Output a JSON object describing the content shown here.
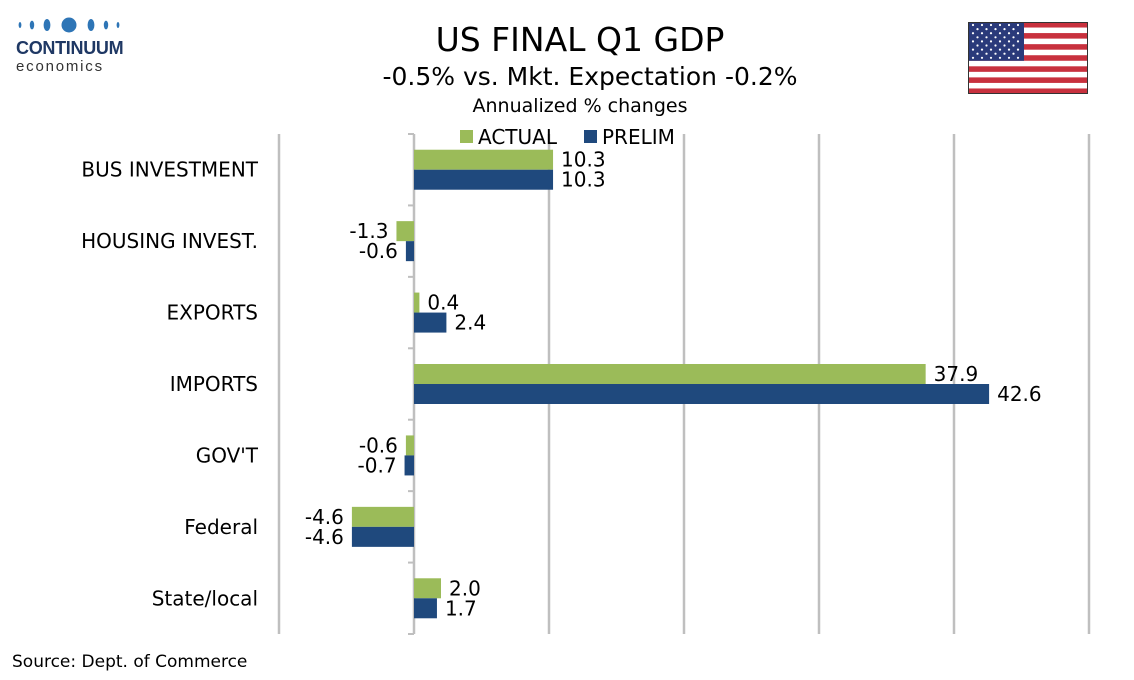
{
  "brand": {
    "name": "CONTINUUM",
    "sub": "economics"
  },
  "header": {
    "title": "US FINAL Q1 GDP",
    "subtitle": "-0.5% vs. Mkt. Expectation -0.2%",
    "note": "Annualized % changes"
  },
  "flag": {
    "icon": "us-flag-icon"
  },
  "source": "Source: Dept. of Commerce",
  "colors": {
    "actual": "#9bbb59",
    "prelim": "#1f497d",
    "grid": "#bfbfbf"
  },
  "chart_data": {
    "type": "bar",
    "orientation": "horizontal",
    "categories": [
      "BUS INVESTMENT",
      "HOUSING INVEST.",
      "EXPORTS",
      "IMPORTS",
      "GOV'T",
      "Federal",
      "State/local"
    ],
    "series": [
      {
        "name": "ACTUAL",
        "values": [
          10.3,
          -1.3,
          0.4,
          37.9,
          -0.6,
          -4.6,
          2.0
        ]
      },
      {
        "name": "PRELIM",
        "values": [
          10.3,
          -0.6,
          2.4,
          42.6,
          -0.7,
          -4.6,
          1.7
        ]
      }
    ],
    "xlim": [
      -10,
      50
    ],
    "grid": true,
    "legend": "top"
  }
}
